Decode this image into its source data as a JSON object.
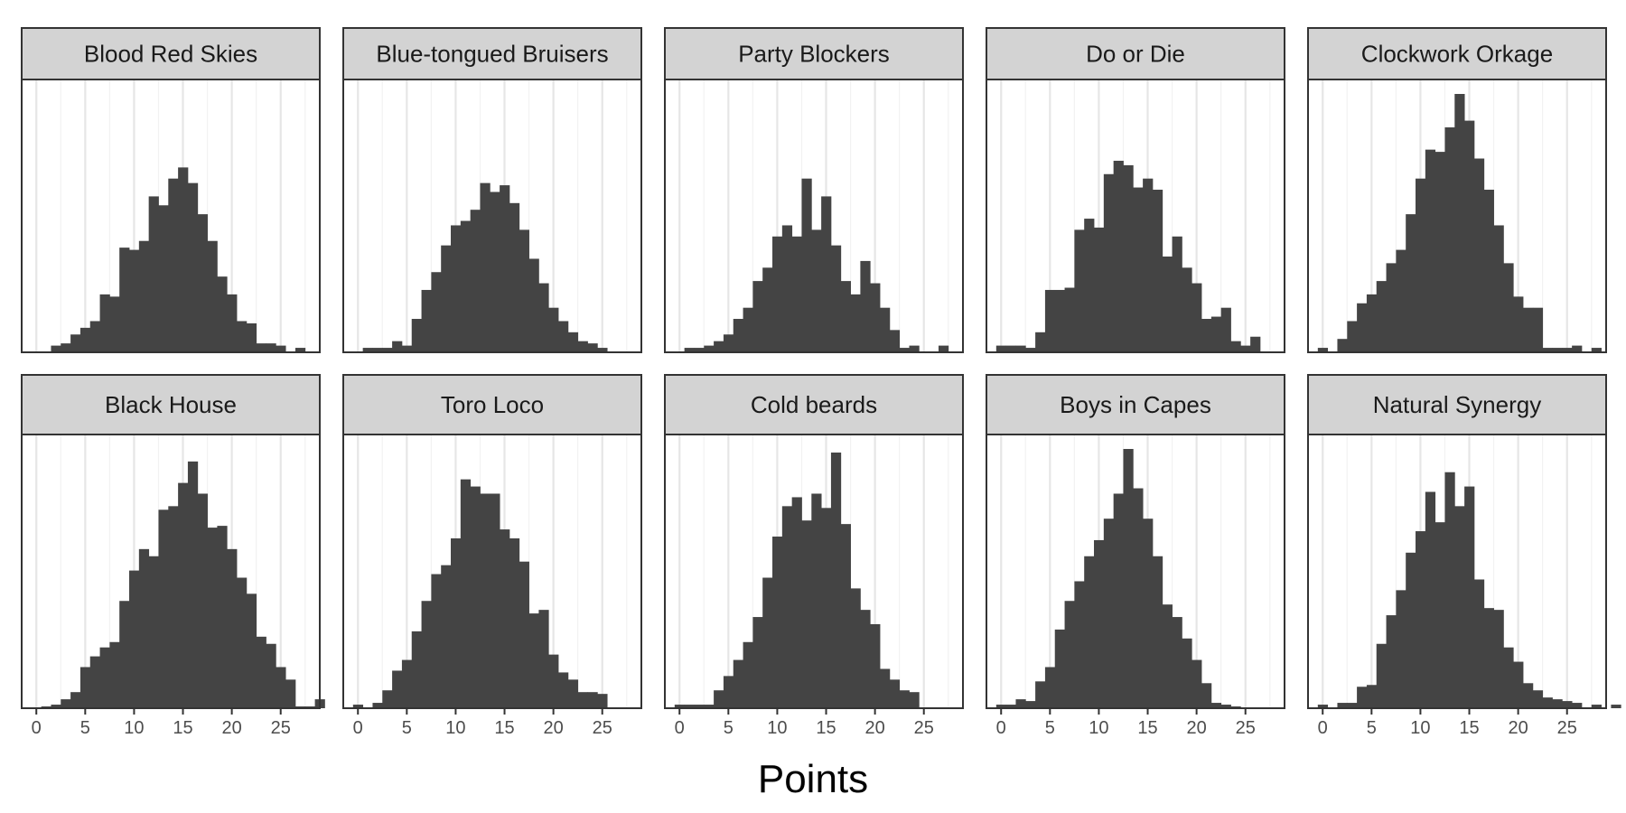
{
  "chart_data": {
    "type": "bar",
    "layout": "facet-grid 2x5, histograms",
    "xlabel": "Points",
    "ylabel": "",
    "xlim": [
      -1.5,
      29
    ],
    "x_ticks": [
      0,
      5,
      10,
      15,
      20,
      25
    ],
    "y_axis_labels_shown": false,
    "grid": "vertical only",
    "colors": {
      "bars": "#444444",
      "strip_background": "#d3d3d3",
      "border": "#333333",
      "grid_major": "#e6e6e6",
      "grid_minor": "#f2f2f2",
      "background": "#ffffff"
    },
    "bin_start": 0,
    "bin_width": 1,
    "panels": [
      {
        "title": "Blood Red Skies",
        "values": [
          0,
          0,
          3,
          4,
          8,
          11,
          14,
          26,
          25,
          47,
          46,
          50,
          70,
          66,
          78,
          83,
          76,
          62,
          50,
          34,
          26,
          14,
          13,
          4,
          4,
          3,
          0,
          2
        ]
      },
      {
        "title": "Blue-tongued Bruisers",
        "values": [
          0,
          2,
          2,
          2,
          5,
          3,
          15,
          28,
          36,
          48,
          57,
          59,
          64,
          76,
          72,
          75,
          67,
          55,
          42,
          31,
          20,
          14,
          9,
          5,
          4,
          2
        ]
      },
      {
        "title": "Party Blockers",
        "values": [
          0,
          2,
          2,
          3,
          5,
          8,
          15,
          20,
          32,
          38,
          52,
          57,
          52,
          78,
          55,
          70,
          48,
          32,
          26,
          41,
          31,
          20,
          10,
          2,
          3,
          0,
          0,
          3
        ]
      },
      {
        "title": "Do or Die",
        "values": [
          3,
          3,
          3,
          2,
          9,
          28,
          28,
          29,
          55,
          60,
          56,
          80,
          86,
          84,
          74,
          78,
          73,
          43,
          52,
          38,
          31,
          15,
          16,
          20,
          5,
          3,
          7
        ]
      },
      {
        "title": "Clockwork Orkage",
        "values": [
          2,
          0,
          6,
          14,
          22,
          26,
          32,
          40,
          46,
          62,
          78,
          91,
          90,
          101,
          116,
          104,
          87,
          73,
          57,
          40,
          25,
          20,
          20,
          2,
          2,
          2,
          3,
          0,
          2
        ]
      },
      {
        "title": "Black House",
        "values": [
          0,
          1,
          2,
          5,
          9,
          23,
          29,
          34,
          37,
          60,
          77,
          89,
          85,
          111,
          113,
          126,
          138,
          120,
          101,
          102,
          89,
          73,
          64,
          40,
          36,
          23,
          16,
          1,
          1,
          5,
          0
        ]
      },
      {
        "title": "Toro Loco",
        "values": [
          2,
          0,
          3,
          10,
          21,
          27,
          43,
          60,
          75,
          80,
          95,
          128,
          124,
          120,
          120,
          100,
          95,
          82,
          53,
          55,
          30,
          20,
          16,
          9,
          9,
          8
        ]
      },
      {
        "title": "Cold beards",
        "values": [
          2,
          2,
          2,
          2,
          10,
          18,
          27,
          37,
          51,
          73,
          96,
          113,
          118,
          105,
          120,
          112,
          143,
          103,
          67,
          55,
          47,
          22,
          16,
          10,
          9
        ]
      },
      {
        "title": "Boys in Capes",
        "values": [
          2,
          2,
          5,
          4,
          15,
          23,
          44,
          60,
          71,
          85,
          94,
          106,
          120,
          145,
          123,
          106,
          85,
          58,
          51,
          39,
          27,
          14,
          3,
          2,
          1
        ]
      },
      {
        "title": "Natural Synergy",
        "values": [
          2,
          0,
          3,
          3,
          12,
          13,
          36,
          52,
          66,
          87,
          99,
          121,
          104,
          132,
          113,
          124,
          72,
          56,
          55,
          34,
          26,
          14,
          10,
          6,
          5,
          4,
          3,
          0,
          2,
          0,
          2
        ]
      }
    ]
  }
}
